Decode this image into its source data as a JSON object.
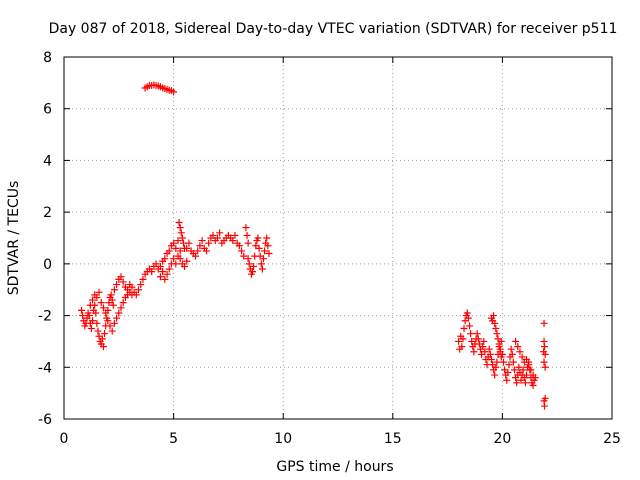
{
  "colors": {
    "series": "#ff0000",
    "grid": "#a0a0a0",
    "axes": "#000000"
  },
  "chart_data": {
    "type": "scatter",
    "title": "Day 087 of 2018, Sidereal Day-to-day VTEC variation (SDTVAR) for receiver p511",
    "xlabel": "GPS time / hours",
    "ylabel": "SDTVAR / TECUs",
    "xlim": [
      0,
      25
    ],
    "ylim": [
      -6,
      8
    ],
    "xticks": [
      0,
      5,
      10,
      15,
      20,
      25
    ],
    "yticks": [
      -6,
      -4,
      -2,
      0,
      2,
      4,
      6,
      8
    ],
    "grid": true,
    "marker": "plus",
    "series": [
      {
        "name": "SDTVAR",
        "points": [
          [
            0.8,
            -1.8
          ],
          [
            0.85,
            -2.0
          ],
          [
            0.9,
            -2.2
          ],
          [
            0.95,
            -2.4
          ],
          [
            1.0,
            -2.3
          ],
          [
            1.05,
            -2.1
          ],
          [
            1.1,
            -1.9
          ],
          [
            1.15,
            -2.0
          ],
          [
            1.2,
            -2.3
          ],
          [
            1.25,
            -2.5
          ],
          [
            1.3,
            -2.2
          ],
          [
            1.35,
            -1.8
          ],
          [
            1.4,
            -1.6
          ],
          [
            1.45,
            -1.9
          ],
          [
            1.5,
            -2.3
          ],
          [
            1.55,
            -2.6
          ],
          [
            1.6,
            -2.8
          ],
          [
            1.65,
            -3.0
          ],
          [
            1.7,
            -3.1
          ],
          [
            1.75,
            -2.9
          ],
          [
            1.8,
            -3.2
          ],
          [
            1.85,
            -2.7
          ],
          [
            1.9,
            -2.4
          ],
          [
            1.95,
            -2.1
          ],
          [
            2.0,
            -1.8
          ],
          [
            2.05,
            -1.5
          ],
          [
            2.1,
            -1.3
          ],
          [
            2.15,
            -1.2
          ],
          [
            2.2,
            -1.4
          ],
          [
            2.25,
            -1.6
          ],
          [
            1.2,
            -1.6
          ],
          [
            1.3,
            -1.4
          ],
          [
            1.4,
            -1.2
          ],
          [
            1.5,
            -1.3
          ],
          [
            1.6,
            -1.1
          ],
          [
            1.7,
            -1.5
          ],
          [
            1.8,
            -1.7
          ],
          [
            1.9,
            -1.9
          ],
          [
            2.0,
            -2.2
          ],
          [
            2.1,
            -2.4
          ],
          [
            2.2,
            -2.6
          ],
          [
            2.3,
            -2.3
          ],
          [
            2.4,
            -2.1
          ],
          [
            2.5,
            -1.9
          ],
          [
            2.6,
            -1.7
          ],
          [
            2.7,
            -1.5
          ],
          [
            2.8,
            -1.3
          ],
          [
            2.9,
            -1.2
          ],
          [
            3.0,
            -1.1
          ],
          [
            3.1,
            -1.2
          ],
          [
            2.3,
            -1.0
          ],
          [
            2.4,
            -0.8
          ],
          [
            2.5,
            -0.6
          ],
          [
            2.6,
            -0.5
          ],
          [
            2.7,
            -0.7
          ],
          [
            2.8,
            -0.9
          ],
          [
            2.9,
            -1.0
          ],
          [
            3.0,
            -0.8
          ],
          [
            3.1,
            -0.9
          ],
          [
            3.2,
            -1.1
          ],
          [
            3.3,
            -1.2
          ],
          [
            3.4,
            -1.0
          ],
          [
            3.5,
            -0.8
          ],
          [
            3.6,
            -0.6
          ],
          [
            3.7,
            -0.4
          ],
          [
            3.8,
            -0.3
          ],
          [
            3.9,
            -0.2
          ],
          [
            4.0,
            -0.3
          ],
          [
            4.1,
            -0.1
          ],
          [
            4.2,
            0.0
          ],
          [
            4.3,
            -0.2
          ],
          [
            4.4,
            -0.1
          ],
          [
            4.5,
            0.1
          ],
          [
            4.6,
            0.2
          ],
          [
            4.7,
            0.4
          ],
          [
            4.8,
            0.5
          ],
          [
            4.9,
            0.7
          ],
          [
            5.0,
            0.8
          ],
          [
            5.1,
            0.6
          ],
          [
            5.2,
            0.9
          ],
          [
            4.4,
            -0.5
          ],
          [
            4.5,
            -0.3
          ],
          [
            4.6,
            -0.6
          ],
          [
            4.7,
            -0.4
          ],
          [
            4.8,
            -0.2
          ],
          [
            4.9,
            0.0
          ],
          [
            5.0,
            0.2
          ],
          [
            5.1,
            0.0
          ],
          [
            5.2,
            0.3
          ],
          [
            5.3,
            0.5
          ],
          [
            5.25,
            1.6
          ],
          [
            5.3,
            1.4
          ],
          [
            5.35,
            1.2
          ],
          [
            5.4,
            1.0
          ],
          [
            5.45,
            0.8
          ],
          [
            5.5,
            0.6
          ],
          [
            5.3,
            0.2
          ],
          [
            5.4,
            0.0
          ],
          [
            5.5,
            -0.1
          ],
          [
            5.6,
            0.1
          ],
          [
            5.6,
            0.6
          ],
          [
            5.7,
            0.8
          ],
          [
            5.8,
            0.5
          ],
          [
            5.9,
            0.4
          ],
          [
            6.0,
            0.3
          ],
          [
            6.1,
            0.5
          ],
          [
            6.2,
            0.7
          ],
          [
            6.3,
            0.9
          ],
          [
            6.4,
            0.6
          ],
          [
            6.5,
            0.5
          ],
          [
            6.6,
            0.8
          ],
          [
            6.7,
            1.0
          ],
          [
            6.8,
            1.1
          ],
          [
            6.9,
            0.9
          ],
          [
            7.0,
            1.0
          ],
          [
            7.1,
            1.2
          ],
          [
            7.2,
            0.8
          ],
          [
            7.3,
            0.9
          ],
          [
            7.4,
            1.0
          ],
          [
            7.5,
            1.1
          ],
          [
            7.6,
            1.0
          ],
          [
            7.7,
            0.9
          ],
          [
            7.8,
            1.1
          ],
          [
            7.9,
            0.8
          ],
          [
            8.0,
            0.7
          ],
          [
            8.1,
            0.5
          ],
          [
            8.2,
            0.3
          ],
          [
            8.3,
            1.4
          ],
          [
            8.35,
            1.1
          ],
          [
            8.4,
            0.8
          ],
          [
            8.4,
            0.2
          ],
          [
            8.45,
            0.0
          ],
          [
            8.5,
            -0.2
          ],
          [
            8.55,
            -0.4
          ],
          [
            8.6,
            -0.3
          ],
          [
            8.65,
            -0.1
          ],
          [
            8.7,
            0.3
          ],
          [
            8.75,
            0.7
          ],
          [
            8.8,
            0.9
          ],
          [
            8.85,
            1.0
          ],
          [
            8.9,
            0.6
          ],
          [
            8.95,
            0.3
          ],
          [
            9.0,
            0.0
          ],
          [
            9.05,
            -0.2
          ],
          [
            9.1,
            0.2
          ],
          [
            9.15,
            0.5
          ],
          [
            9.2,
            0.8
          ],
          [
            9.25,
            1.0
          ],
          [
            9.3,
            0.7
          ],
          [
            9.35,
            0.4
          ],
          [
            3.7,
            6.8
          ],
          [
            3.8,
            6.85
          ],
          [
            3.9,
            6.9
          ],
          [
            4.0,
            6.9
          ],
          [
            4.1,
            6.92
          ],
          [
            4.2,
            6.9
          ],
          [
            4.3,
            6.88
          ],
          [
            4.4,
            6.85
          ],
          [
            4.5,
            6.8
          ],
          [
            4.6,
            6.78
          ],
          [
            4.7,
            6.75
          ],
          [
            4.8,
            6.72
          ],
          [
            4.9,
            6.7
          ],
          [
            5.0,
            6.65
          ],
          [
            18.0,
            -3.0
          ],
          [
            18.05,
            -3.3
          ],
          [
            18.1,
            -2.8
          ],
          [
            18.15,
            -3.2
          ],
          [
            18.2,
            -2.9
          ],
          [
            18.25,
            -2.5
          ],
          [
            18.3,
            -2.2
          ],
          [
            18.35,
            -2.0
          ],
          [
            18.4,
            -1.9
          ],
          [
            18.45,
            -2.1
          ],
          [
            18.5,
            -2.4
          ],
          [
            18.55,
            -2.7
          ],
          [
            18.6,
            -3.0
          ],
          [
            18.65,
            -3.2
          ],
          [
            18.7,
            -3.4
          ],
          [
            18.75,
            -3.1
          ],
          [
            18.8,
            -2.9
          ],
          [
            18.85,
            -2.7
          ],
          [
            18.9,
            -2.9
          ],
          [
            18.95,
            -3.1
          ],
          [
            19.0,
            -3.3
          ],
          [
            19.05,
            -3.5
          ],
          [
            19.1,
            -3.2
          ],
          [
            19.15,
            -3.0
          ],
          [
            19.2,
            -3.4
          ],
          [
            19.25,
            -3.7
          ],
          [
            19.3,
            -3.9
          ],
          [
            19.35,
            -3.6
          ],
          [
            19.4,
            -3.3
          ],
          [
            19.45,
            -3.5
          ],
          [
            19.5,
            -3.7
          ],
          [
            19.55,
            -3.9
          ],
          [
            19.6,
            -4.1
          ],
          [
            19.65,
            -4.3
          ],
          [
            19.7,
            -4.0
          ],
          [
            19.75,
            -3.8
          ],
          [
            19.8,
            -3.5
          ],
          [
            19.85,
            -3.2
          ],
          [
            19.9,
            -3.4
          ],
          [
            19.95,
            -3.6
          ],
          [
            19.5,
            -2.1
          ],
          [
            19.55,
            -2.2
          ],
          [
            19.6,
            -2.0
          ],
          [
            19.65,
            -2.3
          ],
          [
            19.7,
            -2.5
          ],
          [
            19.75,
            -2.7
          ],
          [
            19.8,
            -2.9
          ],
          [
            19.85,
            -3.1
          ],
          [
            19.9,
            -3.3
          ],
          [
            19.95,
            -3.0
          ],
          [
            20.0,
            -3.5
          ],
          [
            20.05,
            -3.8
          ],
          [
            20.1,
            -4.1
          ],
          [
            20.15,
            -4.3
          ],
          [
            20.2,
            -4.5
          ],
          [
            20.25,
            -4.2
          ],
          [
            20.3,
            -3.9
          ],
          [
            20.35,
            -3.6
          ],
          [
            20.4,
            -3.3
          ],
          [
            20.45,
            -3.5
          ],
          [
            20.5,
            -3.8
          ],
          [
            20.55,
            -4.1
          ],
          [
            20.6,
            -4.4
          ],
          [
            20.65,
            -4.6
          ],
          [
            20.7,
            -4.3
          ],
          [
            20.75,
            -4.0
          ],
          [
            20.8,
            -4.2
          ],
          [
            20.85,
            -4.5
          ],
          [
            20.9,
            -4.3
          ],
          [
            20.95,
            -4.1
          ],
          [
            21.0,
            -4.4
          ],
          [
            21.05,
            -4.6
          ],
          [
            21.1,
            -4.3
          ],
          [
            21.15,
            -4.0
          ],
          [
            21.2,
            -3.8
          ],
          [
            21.25,
            -4.1
          ],
          [
            21.3,
            -4.4
          ],
          [
            21.35,
            -4.6
          ],
          [
            21.4,
            -4.7
          ],
          [
            21.45,
            -4.5
          ],
          [
            20.6,
            -3.0
          ],
          [
            20.7,
            -3.2
          ],
          [
            20.8,
            -3.4
          ],
          [
            20.9,
            -3.6
          ],
          [
            21.0,
            -3.8
          ],
          [
            21.1,
            -3.7
          ],
          [
            21.2,
            -3.9
          ],
          [
            21.3,
            -4.1
          ],
          [
            21.4,
            -4.3
          ],
          [
            21.5,
            -4.4
          ],
          [
            21.9,
            -2.3
          ],
          [
            21.9,
            -3.0
          ],
          [
            21.92,
            -3.2
          ],
          [
            21.95,
            -3.5
          ],
          [
            21.9,
            -3.8
          ],
          [
            21.95,
            -4.0
          ],
          [
            21.9,
            -5.3
          ],
          [
            21.92,
            -5.5
          ],
          [
            21.95,
            -5.2
          ],
          [
            21.88,
            -3.4
          ]
        ]
      }
    ]
  }
}
